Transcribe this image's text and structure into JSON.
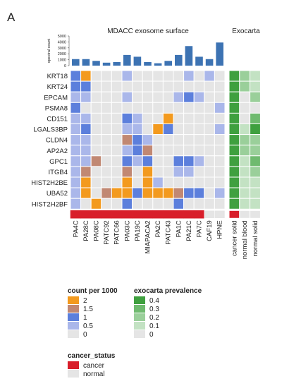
{
  "panel_label": "A",
  "chart_data": {
    "type": "heatmap",
    "section_titles": {
      "left": "MDACC exosome surface",
      "right": "Exocarta"
    },
    "bar_axis_label": "spectral count",
    "bar_axis_ticks": [
      "5000",
      "4000",
      "3000",
      "2000",
      "1000",
      "0"
    ],
    "bar_ylim": [
      0,
      5000
    ],
    "rows": [
      "KRT18",
      "KRT24",
      "EPCAM",
      "PSMA8",
      "CD151",
      "LGALS3BP",
      "CLDN4",
      "AP2A2",
      "GPC1",
      "ITGB4",
      "HIST2H2BE",
      "UBA52",
      "HIST2H2BF"
    ],
    "left_columns": [
      "PA4C",
      "PA28C",
      "PA08C",
      "PATC92",
      "PATC66",
      "PA03C",
      "PA19C",
      "MIAPACA2",
      "PA2C",
      "PATC43",
      "PA1C",
      "PA21C",
      "PA7C",
      "CAF19",
      "HPNE"
    ],
    "right_columns": [
      "cancer solid",
      "normal blood",
      "normal solid"
    ],
    "spectral_counts": [
      1100,
      1100,
      800,
      500,
      600,
      1800,
      1500,
      600,
      400,
      800,
      1800,
      3300,
      1500,
      1100,
      3900
    ],
    "cancer_status": [
      "cancer",
      "cancer",
      "cancer",
      "cancer",
      "cancer",
      "cancer",
      "cancer",
      "cancer",
      "cancer",
      "cancer",
      "cancer",
      "cancer",
      "cancer",
      "normal",
      "normal"
    ],
    "right_status": [
      "cancer",
      "normal",
      "normal"
    ],
    "count_per_1000": [
      [
        1,
        2,
        0,
        0,
        0,
        0.5,
        0,
        0,
        0,
        0,
        0,
        0.5,
        0,
        0.5,
        0
      ],
      [
        1,
        1,
        0,
        0,
        0,
        0,
        0,
        0,
        0,
        0,
        0,
        0,
        0,
        0,
        0
      ],
      [
        0.5,
        0.5,
        0,
        0,
        0,
        0.5,
        0,
        0,
        0,
        0,
        0.5,
        1,
        0.5,
        0,
        0
      ],
      [
        1,
        0,
        0,
        0,
        0,
        0,
        0,
        0,
        0,
        0,
        0,
        0,
        0,
        0,
        0.5
      ],
      [
        0.5,
        0.5,
        0,
        0,
        0,
        1,
        0.5,
        0,
        0,
        2,
        0,
        0,
        0,
        0,
        0
      ],
      [
        0.5,
        1,
        0,
        0,
        0,
        0.5,
        0.5,
        0,
        2,
        1,
        0,
        0,
        0,
        0,
        0.5
      ],
      [
        0.5,
        0.5,
        0,
        0,
        0,
        1.5,
        1,
        0.5,
        0,
        0,
        0,
        0,
        0,
        0,
        0
      ],
      [
        0.5,
        0.5,
        0,
        0,
        0,
        0.5,
        1,
        1.5,
        0,
        0,
        0,
        0,
        0,
        0,
        0
      ],
      [
        0.5,
        0.5,
        1.5,
        0,
        0,
        1,
        0.5,
        1,
        0,
        0,
        1,
        1,
        0.5,
        0,
        0
      ],
      [
        0.5,
        1.5,
        0,
        0,
        0,
        1.5,
        0,
        2,
        0,
        0,
        0.5,
        0.5,
        0,
        0,
        0
      ],
      [
        0.5,
        2,
        0,
        0,
        0,
        2,
        0,
        2,
        0.5,
        0,
        0,
        0,
        0,
        0,
        0
      ],
      [
        0.5,
        2,
        0,
        1.5,
        2,
        2,
        1,
        2,
        2,
        2,
        1.5,
        1,
        1,
        0,
        0.5
      ],
      [
        0.5,
        0,
        2,
        0,
        0,
        1,
        0,
        0,
        0,
        0,
        1,
        0,
        0,
        0,
        0
      ]
    ],
    "exocarta_prevalence": [
      [
        0.4,
        0.2,
        0.1
      ],
      [
        0.4,
        0.2,
        0.1
      ],
      [
        0.4,
        0,
        0.2
      ],
      [
        0.4,
        0,
        0
      ],
      [
        0.4,
        0,
        0.3
      ],
      [
        0.4,
        0.1,
        0.4
      ],
      [
        0.4,
        0.2,
        0.2
      ],
      [
        0.4,
        0.2,
        0.2
      ],
      [
        0.4,
        0.1,
        0.3
      ],
      [
        0.4,
        0.1,
        0.2
      ],
      [
        0.4,
        0.1,
        0.1
      ],
      [
        0.4,
        0.1,
        0.1
      ],
      [
        0.4,
        0.1,
        0.1
      ]
    ],
    "legend_count": {
      "title": "count per 1000",
      "entries": [
        {
          "label": "2",
          "color": "#f39a1e"
        },
        {
          "label": "1.5",
          "color": "#c18873"
        },
        {
          "label": "1",
          "color": "#5c7fdc"
        },
        {
          "label": "0.5",
          "color": "#aab7ea"
        },
        {
          "label": "0",
          "color": "#e5e5e5"
        }
      ]
    },
    "legend_exocarta": {
      "title": "exocarta prevalence",
      "entries": [
        {
          "label": "0.4",
          "color": "#3fa03f"
        },
        {
          "label": "0.3",
          "color": "#6fba6f"
        },
        {
          "label": "0.2",
          "color": "#9acf9a"
        },
        {
          "label": "0.1",
          "color": "#c3e2c3"
        },
        {
          "label": "0",
          "color": "#e5e5e5"
        }
      ]
    },
    "legend_status": {
      "title": "cancer_status",
      "entries": [
        {
          "label": "cancer",
          "color": "#d81e2a"
        },
        {
          "label": "normal",
          "color": "#e5e5e5"
        }
      ]
    },
    "bar_color": "#3d73b3"
  }
}
